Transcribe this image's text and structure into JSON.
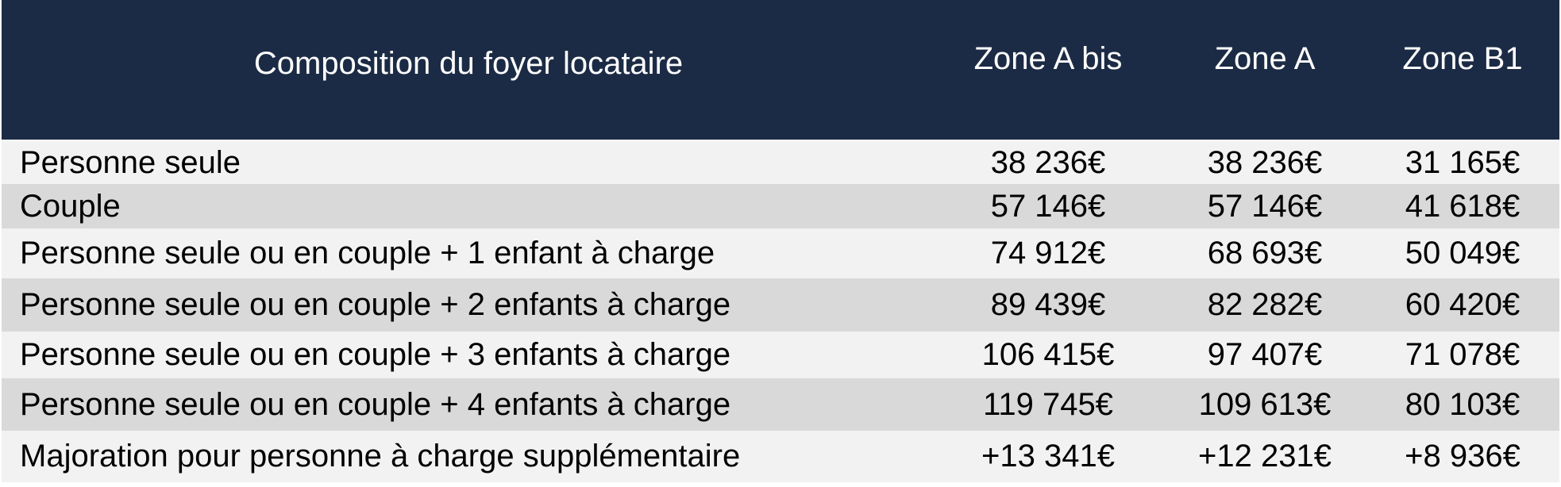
{
  "table": {
    "header": [
      "Composition du foyer locataire",
      "Zone A bis",
      "Zone A",
      "Zone B1"
    ],
    "rows": [
      [
        "Personne seule",
        "38 236€",
        "38 236€",
        "31 165€"
      ],
      [
        "Couple",
        "57 146€",
        "57 146€",
        "41 618€"
      ],
      [
        "Personne seule ou en couple + 1 enfant à charge",
        "74 912€",
        "68 693€",
        "50 049€"
      ],
      [
        "Personne seule ou en couple + 2 enfants à charge",
        "89 439€",
        "82 282€",
        "60 420€"
      ],
      [
        "Personne seule ou en couple + 3 enfants à charge",
        "106 415€",
        "97 407€",
        "71 078€"
      ],
      [
        "Personne seule ou en couple + 4 enfants à charge",
        "119 745€",
        "109 613€",
        "80 103€"
      ],
      [
        "Majoration pour personne à charge supplémentaire",
        "+13 341€",
        "+12 231€",
        "+8 936€"
      ]
    ]
  }
}
